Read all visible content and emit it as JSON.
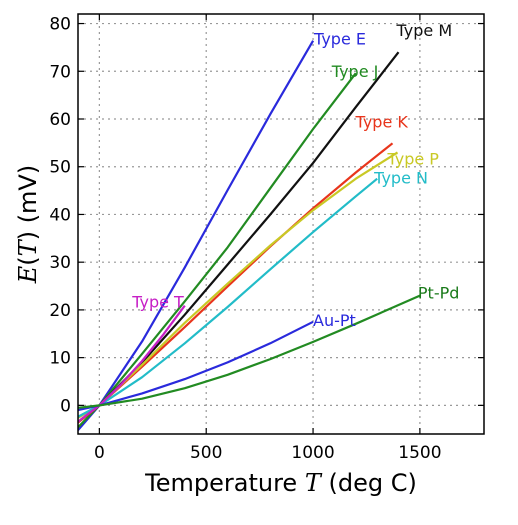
{
  "chart_data": {
    "type": "line",
    "title": "",
    "xlabel_prefix": "Temperature ",
    "xlabel_var": "T",
    "xlabel_suffix": " (deg C)",
    "ylabel_prefix": "E(",
    "ylabel_var": "T",
    "ylabel_suffix": ") (mV)",
    "xlim": [
      -100,
      1800
    ],
    "ylim": [
      -6,
      82
    ],
    "xticks": [
      0,
      500,
      1000,
      1500
    ],
    "yticks": [
      0,
      10,
      20,
      30,
      40,
      50,
      60,
      70,
      80
    ],
    "grid": true,
    "series": [
      {
        "name": "Type E",
        "color": "#2a2adc",
        "labelColor": "#2a2adc",
        "x": [
          -100,
          0,
          200,
          400,
          600,
          800,
          1000
        ],
        "y": [
          -5.2,
          0,
          13.4,
          28.9,
          45.1,
          61.0,
          76.4
        ]
      },
      {
        "name": "Type J",
        "color": "#228b22",
        "labelColor": "#228b22",
        "x": [
          -100,
          0,
          200,
          400,
          600,
          800,
          1000,
          1200
        ],
        "y": [
          -4.6,
          0,
          10.8,
          21.8,
          33.1,
          45.5,
          57.9,
          69.6
        ]
      },
      {
        "name": "Type M",
        "color": "#111111",
        "labelColor": "#111111",
        "x": [
          -100,
          0,
          200,
          400,
          600,
          800,
          1000,
          1200,
          1400
        ],
        "y": [
          -3.5,
          0,
          9.0,
          19.0,
          29.5,
          40.0,
          50.8,
          62.5,
          74.0
        ]
      },
      {
        "name": "Type K",
        "color": "#e8351c",
        "labelColor": "#e8351c",
        "x": [
          -100,
          0,
          200,
          400,
          600,
          800,
          1000,
          1200,
          1372
        ],
        "y": [
          -3.6,
          0,
          8.1,
          16.4,
          24.9,
          33.3,
          41.3,
          48.8,
          54.9
        ]
      },
      {
        "name": "Type P",
        "color": "#c9c925",
        "labelColor": "#c9c925",
        "x": [
          -100,
          0,
          200,
          400,
          600,
          800,
          1000,
          1200,
          1395
        ],
        "y": [
          -2.6,
          0,
          8.5,
          17.3,
          25.5,
          33.5,
          40.9,
          47.5,
          53.0
        ]
      },
      {
        "name": "Type N",
        "color": "#22bcc8",
        "labelColor": "#22bcc8",
        "x": [
          -100,
          0,
          200,
          400,
          600,
          800,
          1000,
          1200,
          1300
        ],
        "y": [
          -2.4,
          0,
          5.9,
          13.0,
          20.6,
          28.5,
          36.3,
          43.8,
          47.5
        ]
      },
      {
        "name": "Type T",
        "color": "#c61fc6",
        "labelColor": "#c61fc6",
        "x": [
          -100,
          0,
          100,
          200,
          300,
          400
        ],
        "y": [
          -3.4,
          0,
          4.3,
          9.3,
          14.9,
          20.9
        ]
      },
      {
        "name": "Au-Pt",
        "color": "#2a2adc",
        "labelColor": "#2a2adc",
        "x": [
          -100,
          0,
          200,
          400,
          600,
          800,
          1000
        ],
        "y": [
          -1.0,
          0,
          2.5,
          5.5,
          9.0,
          13.0,
          17.5
        ]
      },
      {
        "name": "Pt-Pd",
        "color": "#228b22",
        "labelColor": "#1a7a1a",
        "x": [
          -100,
          0,
          200,
          400,
          600,
          800,
          1000,
          1200,
          1500
        ],
        "y": [
          -0.5,
          0,
          1.4,
          3.6,
          6.4,
          9.7,
          13.3,
          17.1,
          23.0
        ]
      }
    ]
  }
}
